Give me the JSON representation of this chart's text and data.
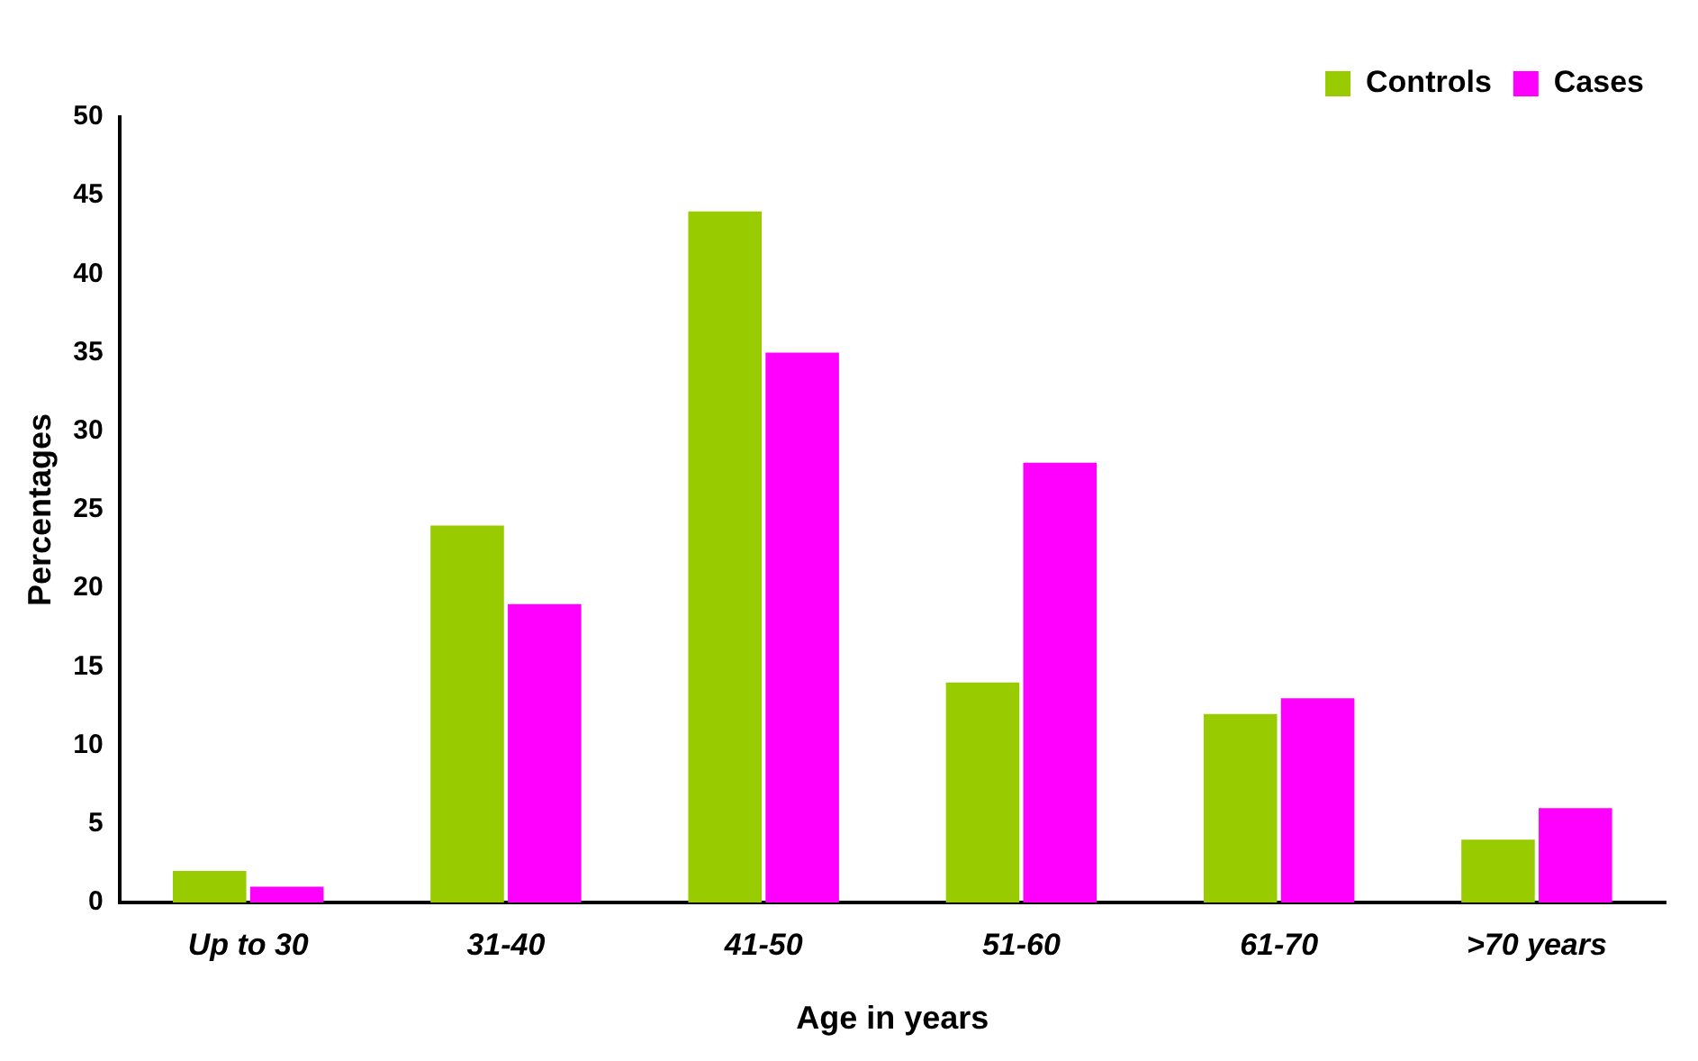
{
  "chart_data": {
    "type": "bar",
    "xlabel": "Age in years",
    "ylabel": "Percentages",
    "categories": [
      "Up to 30",
      "31-40",
      "41-50",
      "51-60",
      "61-70",
      ">70 years"
    ],
    "series": [
      {
        "name": "Controls",
        "color": "#99cc00",
        "values": [
          2,
          24,
          44,
          14,
          12,
          4
        ]
      },
      {
        "name": "Cases",
        "color": "#ff00ff",
        "values": [
          1,
          19,
          35,
          28,
          13,
          6
        ]
      }
    ],
    "ylim": [
      0,
      50
    ],
    "yticks": [
      0,
      5,
      10,
      15,
      20,
      25,
      30,
      35,
      40,
      45,
      50
    ],
    "grid": false,
    "legend": "top right"
  }
}
